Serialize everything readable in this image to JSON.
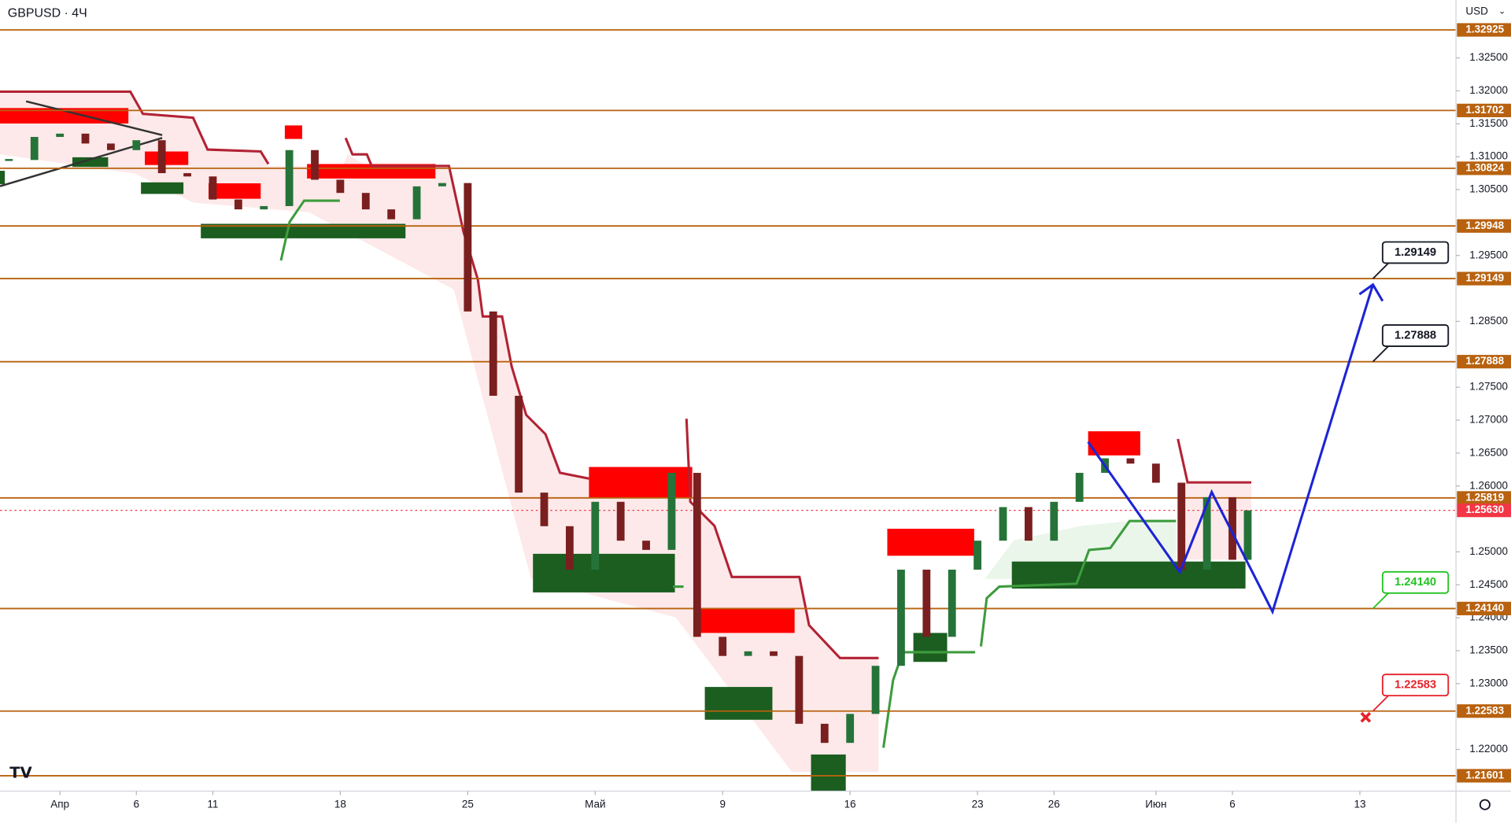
{
  "chart_data": {
    "type": "candlestick",
    "title": "GBPUSD · 4Ч",
    "currency": "USD",
    "x": [
      -2,
      -1,
      0,
      1,
      2,
      3,
      4,
      5,
      6,
      7,
      8,
      9,
      10,
      11,
      12,
      13,
      14,
      15,
      16,
      17,
      18,
      19,
      20,
      21,
      22,
      23,
      24,
      25,
      26,
      27,
      28,
      29,
      30,
      31,
      32,
      33,
      34,
      35,
      36,
      37,
      38,
      39,
      40,
      41,
      42,
      43,
      44,
      45,
      46,
      46.6
    ],
    "values": [
      1.3095,
      1.313,
      1.3135,
      1.312,
      1.311,
      1.3125,
      1.3075,
      1.307,
      1.3035,
      1.302,
      1.3025,
      1.311,
      1.3065,
      1.3045,
      1.302,
      1.3005,
      1.3055,
      1.306,
      1.2865,
      1.2737,
      1.259,
      1.2539,
      1.2473,
      1.2576,
      1.2517,
      1.2503,
      1.262,
      1.2371,
      1.2342,
      1.2349,
      1.2342,
      1.2239,
      1.221,
      1.2254,
      1.2327,
      1.2473,
      1.2371,
      1.2473,
      1.2517,
      1.2568,
      1.2517,
      1.2576,
      1.262,
      1.2642,
      1.2634,
      1.2605,
      1.2473,
      1.2583,
      1.2488,
      1.2563
    ],
    "up_color": "#26733a",
    "down_color": "#7a1f1f",
    "xlim": [
      -2.35,
      54.77
    ],
    "ylim": [
      1.21367,
      1.33379
    ],
    "xticks": [
      {
        "value": 0,
        "label": "Апр"
      },
      {
        "value": 3,
        "label": "6"
      },
      {
        "value": 6,
        "label": "11"
      },
      {
        "value": 11,
        "label": "18"
      },
      {
        "value": 16,
        "label": "25"
      },
      {
        "value": 21,
        "label": "Май"
      },
      {
        "value": 26,
        "label": "9"
      },
      {
        "value": 31,
        "label": "16"
      },
      {
        "value": 36,
        "label": "23"
      },
      {
        "value": 39,
        "label": "26"
      },
      {
        "value": 43,
        "label": "Июн"
      },
      {
        "value": 46,
        "label": "6"
      },
      {
        "value": 51,
        "label": "13"
      }
    ],
    "yticks": [
      {
        "value": 1.325,
        "label": "1.32500"
      },
      {
        "value": 1.32,
        "label": "1.32000"
      },
      {
        "value": 1.315,
        "label": "1.31500"
      },
      {
        "value": 1.31,
        "label": "1.31000"
      },
      {
        "value": 1.305,
        "label": "1.30500"
      },
      {
        "value": 1.295,
        "label": "1.29500"
      },
      {
        "value": 1.285,
        "label": "1.28500"
      },
      {
        "value": 1.275,
        "label": "1.27500"
      },
      {
        "value": 1.27,
        "label": "1.27000"
      },
      {
        "value": 1.265,
        "label": "1.26500"
      },
      {
        "value": 1.26,
        "label": "1.26000"
      },
      {
        "value": 1.25,
        "label": "1.25000"
      },
      {
        "value": 1.245,
        "label": "1.24500"
      },
      {
        "value": 1.24,
        "label": "1.24000"
      },
      {
        "value": 1.235,
        "label": "1.23500"
      },
      {
        "value": 1.23,
        "label": "1.23000"
      },
      {
        "value": 1.22,
        "label": "1.22000"
      }
    ],
    "levels": [
      1.32925,
      1.31702,
      1.30824,
      1.29948,
      1.29149,
      1.27888,
      1.25819,
      {
        "value": 1.2414,
        "label": "1.24140"
      },
      1.22583,
      1.21601
    ],
    "level_color": "#b8620f",
    "current_price": {
      "value": 1.2563,
      "label": "1.25630"
    },
    "current_color": "#f23645",
    "callouts": [
      {
        "value": 1.29149,
        "label": "1.29149",
        "color": "#131722"
      },
      {
        "value": 1.27888,
        "label": "1.27888",
        "color": "#131722"
      },
      {
        "value": 1.2414,
        "label": "1.24140",
        "color": "#22c322"
      },
      {
        "value": 1.22583,
        "label": "1.22583",
        "color": "#e5222b"
      }
    ]
  }
}
